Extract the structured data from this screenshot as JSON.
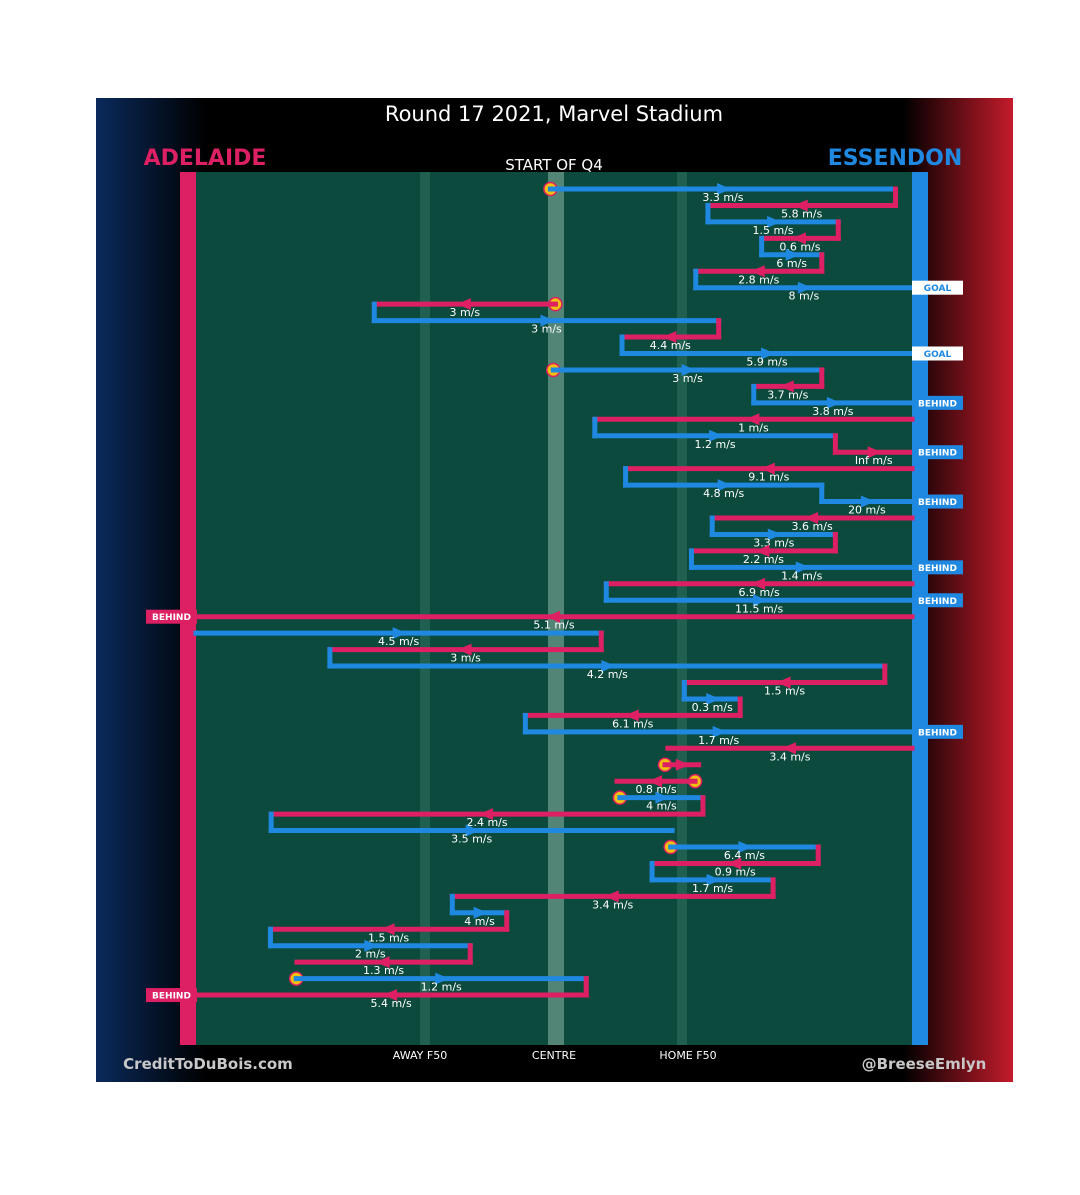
{
  "header": {
    "title": "Round 17 2021, Marvel Stadium",
    "subtitle": "START OF Q4",
    "left_team": "ADELAIDE",
    "right_team": "ESSENDON"
  },
  "footer": {
    "left_credit": "CreditToDuBois.com",
    "right_credit": "@BreeseEmlyn"
  },
  "colors": {
    "adelaide": "#dd1f63",
    "essendon": "#1f88e0",
    "field": "#0b4a3c",
    "start_marker": "#f2c010"
  },
  "chart_data": {
    "type": "line",
    "title": "Round 17 2021, Marvel Stadium",
    "subtitle": "START OF Q4",
    "x_axis": {
      "range": [
        0,
        1
      ],
      "tick_labels": [
        {
          "label": "AWAY F50",
          "x": 0.32
        },
        {
          "label": "CENTRE",
          "x": 0.5
        },
        {
          "label": "HOME F50",
          "x": 0.68
        }
      ]
    },
    "legend": [
      "ADELAIDE",
      "ESSENDON"
    ],
    "possession_chains": [
      {
        "start": true,
        "segments": [
          {
            "team": "ESSENDON",
            "from": 0.495,
            "to": 0.977,
            "speed": "3.3 m/s"
          },
          {
            "team": "ADELAIDE",
            "from": 0.977,
            "to": 0.715,
            "speed": "5.8 m/s"
          },
          {
            "team": "ESSENDON",
            "from": 0.715,
            "to": 0.897,
            "speed": "1.5 m/s"
          },
          {
            "team": "ADELAIDE",
            "from": 0.897,
            "to": 0.79,
            "speed": "0.6 m/s"
          },
          {
            "team": "ESSENDON",
            "from": 0.79,
            "to": 0.874,
            "speed": "6 m/s"
          },
          {
            "team": "ADELAIDE",
            "from": 0.874,
            "to": 0.698,
            "speed": "2.8 m/s"
          },
          {
            "team": "ESSENDON",
            "from": 0.698,
            "to": 1.0,
            "speed": "8 m/s"
          }
        ],
        "outcome": "GOAL",
        "outcome_team": "ESSENDON"
      },
      {
        "start": true,
        "segments": [
          {
            "team": "ADELAIDE",
            "from": 0.502,
            "to": 0.249,
            "speed": "3 m/s"
          },
          {
            "team": "ESSENDON",
            "from": 0.249,
            "to": 0.73,
            "speed": "3 m/s"
          },
          {
            "team": "ADELAIDE",
            "from": 0.73,
            "to": 0.595,
            "speed": "4.4 m/s"
          },
          {
            "team": "ESSENDON",
            "from": 0.595,
            "to": 1.0,
            "speed": "5.9 m/s"
          }
        ],
        "outcome": "GOAL",
        "outcome_team": "ESSENDON"
      },
      {
        "start": true,
        "segments": [
          {
            "team": "ESSENDON",
            "from": 0.499,
            "to": 0.874,
            "speed": "3 m/s"
          },
          {
            "team": "ADELAIDE",
            "from": 0.874,
            "to": 0.779,
            "speed": "3.7 m/s"
          },
          {
            "team": "ESSENDON",
            "from": 0.779,
            "to": 1.0,
            "speed": "3.8 m/s"
          }
        ],
        "outcome": "BEHIND",
        "outcome_team": "ESSENDON"
      },
      {
        "start": false,
        "segments": [
          {
            "team": "ADELAIDE",
            "from": 1.0,
            "to": 0.557,
            "speed": "1 m/s"
          },
          {
            "team": "ESSENDON",
            "from": 0.557,
            "to": 0.893,
            "speed": "1.2 m/s"
          },
          {
            "team": "ADELAIDE",
            "from": 0.893,
            "to": 1.0,
            "speed": "Inf m/s"
          }
        ],
        "outcome": "BEHIND",
        "outcome_team": "ESSENDON"
      },
      {
        "start": false,
        "segments": [
          {
            "team": "ADELAIDE",
            "from": 1.0,
            "to": 0.6,
            "speed": "9.1 m/s"
          },
          {
            "team": "ESSENDON",
            "from": 0.6,
            "to": 0.874,
            "speed": "4.8 m/s"
          },
          {
            "team": "ESSENDON",
            "from": 0.874,
            "to": 1.0,
            "speed": "20 m/s"
          }
        ],
        "outcome": "BEHIND",
        "outcome_team": "ESSENDON"
      },
      {
        "start": false,
        "segments": [
          {
            "team": "ADELAIDE",
            "from": 1.0,
            "to": 0.721,
            "speed": "3.6 m/s"
          },
          {
            "team": "ESSENDON",
            "from": 0.721,
            "to": 0.893,
            "speed": "3.3 m/s"
          },
          {
            "team": "ADELAIDE",
            "from": 0.893,
            "to": 0.692,
            "speed": "2.2 m/s"
          },
          {
            "team": "ESSENDON",
            "from": 0.692,
            "to": 1.0,
            "speed": "1.4 m/s"
          }
        ],
        "outcome": "BEHIND",
        "outcome_team": "ESSENDON"
      },
      {
        "start": false,
        "segments": [
          {
            "team": "ADELAIDE",
            "from": 1.0,
            "to": 0.573,
            "speed": "6.9 m/s"
          },
          {
            "team": "ESSENDON",
            "from": 0.573,
            "to": 1.0,
            "speed": "11.5 m/s"
          }
        ],
        "outcome": "BEHIND",
        "outcome_team": "ESSENDON"
      },
      {
        "start": false,
        "segments": [
          {
            "team": "ADELAIDE",
            "from": 1.0,
            "to": 0.0,
            "speed": "5.1 m/s"
          }
        ],
        "outcome": "BEHIND",
        "outcome_team": "ADELAIDE"
      },
      {
        "start": false,
        "segments": [
          {
            "team": "ESSENDON",
            "from": 0.0,
            "to": 0.566,
            "speed": "4.5 m/s"
          },
          {
            "team": "ADELAIDE",
            "from": 0.566,
            "to": 0.187,
            "speed": "3 m/s"
          },
          {
            "team": "ESSENDON",
            "from": 0.187,
            "to": 0.962,
            "speed": "4.2 m/s"
          },
          {
            "team": "ADELAIDE",
            "from": 0.962,
            "to": 0.682,
            "speed": "1.5 m/s"
          },
          {
            "team": "ESSENDON",
            "from": 0.682,
            "to": 0.76,
            "speed": "0.3 m/s"
          },
          {
            "team": "ADELAIDE",
            "from": 0.76,
            "to": 0.46,
            "speed": "6.1 m/s"
          },
          {
            "team": "ESSENDON",
            "from": 0.46,
            "to": 1.0,
            "speed": "1.7 m/s"
          }
        ],
        "outcome": "BEHIND",
        "outcome_team": "ESSENDON"
      },
      {
        "start": false,
        "segments": [
          {
            "team": "ADELAIDE",
            "from": 1.0,
            "to": 0.659,
            "speed": "3.4 m/s"
          }
        ],
        "outcome": "",
        "outcome_team": ""
      },
      {
        "start": true,
        "segments": [
          {
            "team": "ADELAIDE",
            "from": 0.655,
            "to": 0.702,
            "speed": ""
          }
        ],
        "outcome": "",
        "outcome_team": ""
      },
      {
        "start": true,
        "segments": [
          {
            "team": "ADELAIDE",
            "from": 0.697,
            "to": 0.588,
            "speed": "0.8 m/s"
          }
        ],
        "outcome": "",
        "outcome_team": ""
      },
      {
        "start": true,
        "segments": [
          {
            "team": "ESSENDON",
            "from": 0.592,
            "to": 0.708,
            "speed": "4 m/s"
          },
          {
            "team": "ADELAIDE",
            "from": 0.708,
            "to": 0.105,
            "speed": "2.4 m/s"
          },
          {
            "team": "ESSENDON",
            "from": 0.105,
            "to": 0.665,
            "speed": "3.5 m/s"
          }
        ],
        "outcome": "",
        "outcome_team": ""
      },
      {
        "start": true,
        "segments": [
          {
            "team": "ESSENDON",
            "from": 0.663,
            "to": 0.869,
            "speed": "6.4 m/s"
          },
          {
            "team": "ADELAIDE",
            "from": 0.869,
            "to": 0.637,
            "speed": "0.9 m/s"
          },
          {
            "team": "ESSENDON",
            "from": 0.637,
            "to": 0.806,
            "speed": "1.7 m/s"
          },
          {
            "team": "ADELAIDE",
            "from": 0.806,
            "to": 0.358,
            "speed": "3.4 m/s"
          },
          {
            "team": "ESSENDON",
            "from": 0.358,
            "to": 0.434,
            "speed": "4 m/s"
          },
          {
            "team": "ADELAIDE",
            "from": 0.434,
            "to": 0.104,
            "speed": "1.5 m/s"
          },
          {
            "team": "ESSENDON",
            "from": 0.104,
            "to": 0.383,
            "speed": "2 m/s"
          },
          {
            "team": "ADELAIDE",
            "from": 0.383,
            "to": 0.141,
            "speed": "1.3 m/s"
          }
        ],
        "outcome": "",
        "outcome_team": ""
      },
      {
        "start": true,
        "segments": [
          {
            "team": "ESSENDON",
            "from": 0.14,
            "to": 0.545,
            "speed": "1.2 m/s"
          },
          {
            "team": "ADELAIDE",
            "from": 0.545,
            "to": 0.0,
            "speed": "5.4 m/s"
          }
        ],
        "outcome": "BEHIND",
        "outcome_team": "ADELAIDE"
      }
    ]
  }
}
